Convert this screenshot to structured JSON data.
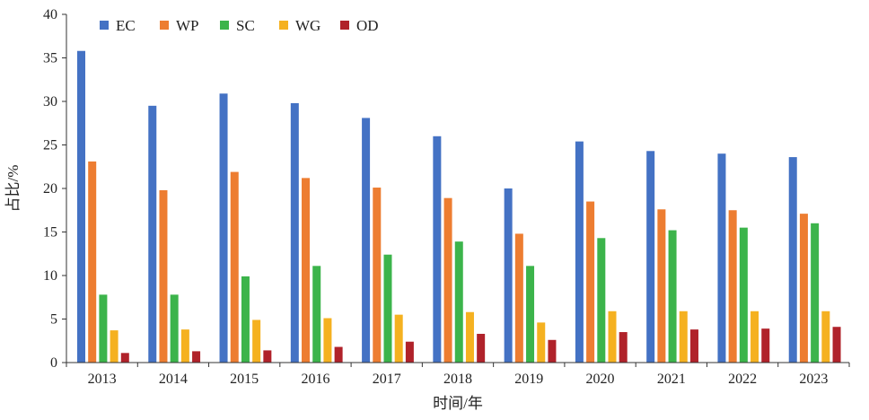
{
  "chart_data": {
    "type": "bar",
    "xlabel": "时间/年",
    "ylabel": "占比/%",
    "ylim": [
      0,
      40
    ],
    "yticks": [
      0,
      5,
      10,
      15,
      20,
      25,
      30,
      35,
      40
    ],
    "grid": false,
    "legend": "top-left",
    "categories": [
      "2013",
      "2014",
      "2015",
      "2016",
      "2017",
      "2018",
      "2019",
      "2020",
      "2021",
      "2022",
      "2023"
    ],
    "series": [
      {
        "name": "EC",
        "color": "#4472c4",
        "values": [
          35.8,
          29.5,
          30.9,
          29.8,
          28.1,
          26.0,
          20.0,
          25.4,
          24.3,
          24.0,
          23.6
        ]
      },
      {
        "name": "WP",
        "color": "#ed7d31",
        "values": [
          23.1,
          19.8,
          21.9,
          21.2,
          20.1,
          18.9,
          14.8,
          18.5,
          17.6,
          17.5,
          17.1
        ]
      },
      {
        "name": "SC",
        "color": "#3cb44b",
        "values": [
          7.8,
          7.8,
          9.9,
          11.1,
          12.4,
          13.9,
          11.1,
          14.3,
          15.2,
          15.5,
          16.0
        ]
      },
      {
        "name": "WG",
        "color": "#f5b120",
        "values": [
          3.7,
          3.8,
          4.9,
          5.1,
          5.5,
          5.8,
          4.6,
          5.9,
          5.9,
          5.9,
          5.9
        ]
      },
      {
        "name": "OD",
        "color": "#b0222a",
        "values": [
          1.1,
          1.3,
          1.4,
          1.8,
          2.4,
          3.3,
          2.6,
          3.5,
          3.8,
          3.9,
          4.1
        ]
      }
    ]
  }
}
